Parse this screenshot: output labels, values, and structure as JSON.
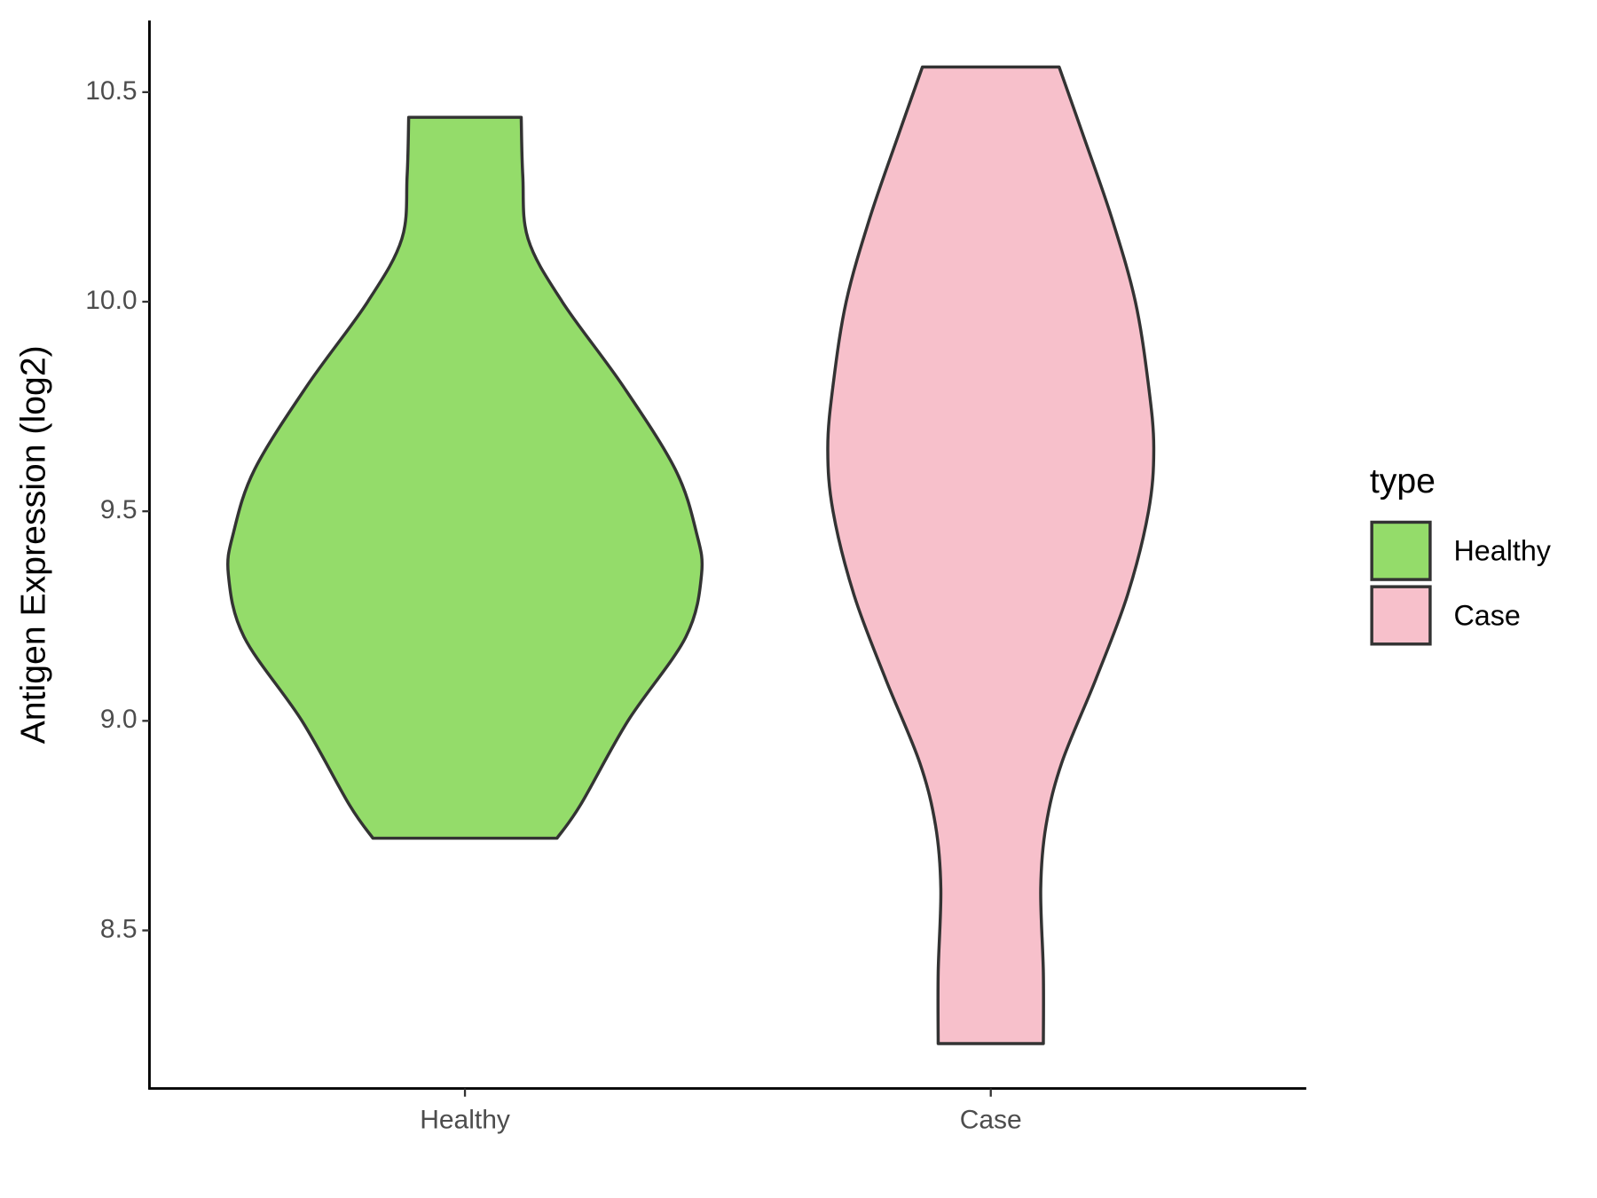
{
  "chart_data": {
    "type": "violin",
    "y_label": "Antigen Expression (log2)",
    "ylim": [
      8.123,
      10.671
    ],
    "yticks": [
      8.5,
      {
        "value": 9,
        "label": "9.0"
      },
      9.5,
      {
        "value": 10,
        "label": "10.0"
      },
      10.5
    ],
    "categories": [
      "Healthy",
      "Case"
    ],
    "legend_title": "type",
    "legend_position": "right",
    "series": [
      {
        "name": "Healthy",
        "color": "#94dc6a",
        "y": [
          10.44,
          10.3,
          10.15,
          10.0,
          9.8,
          9.6,
          9.45,
          9.35,
          9.2,
          9.0,
          8.8,
          8.72
        ],
        "density": [
          0.214,
          0.22,
          0.24,
          0.37,
          0.6,
          0.8,
          0.88,
          0.9,
          0.84,
          0.62,
          0.44,
          0.35
        ]
      },
      {
        "name": "Case",
        "color": "#f7c0cb",
        "y": [
          10.56,
          10.4,
          10.2,
          10.0,
          9.8,
          9.65,
          9.5,
          9.3,
          9.1,
          8.9,
          8.75,
          8.6,
          8.4,
          8.23
        ],
        "density": [
          0.26,
          0.35,
          0.46,
          0.55,
          0.6,
          0.62,
          0.6,
          0.52,
          0.4,
          0.27,
          0.21,
          0.19,
          0.2,
          0.2
        ]
      }
    ]
  }
}
